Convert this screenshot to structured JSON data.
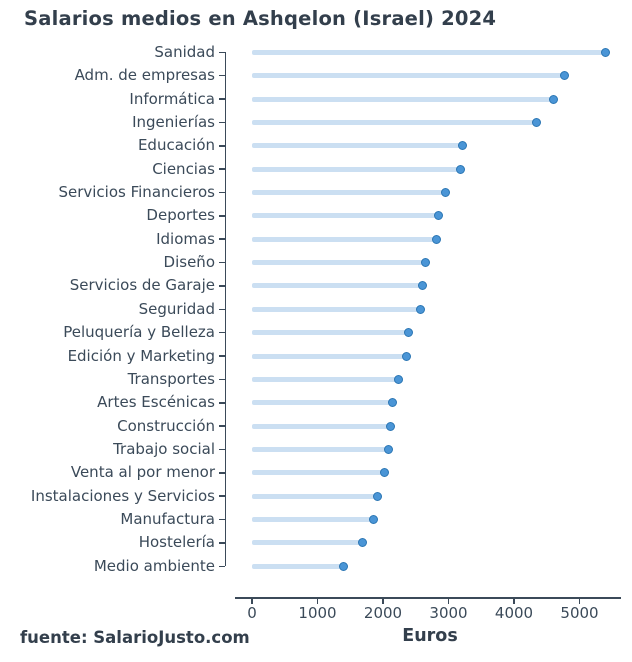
{
  "title": "Salarios medios en Ashqelon (Israel) 2024",
  "source": "fuente: SalarioJusto.com",
  "chart_data": {
    "type": "bar",
    "style": "horizontal-lollipop",
    "title": "Salarios medios en Ashqelon (Israel) 2024",
    "xlabel": "Euros",
    "ylabel": "",
    "xlim": [
      0,
      5630
    ],
    "x_ticks": [
      "0",
      "1000",
      "2000",
      "3000",
      "4000",
      "5000"
    ],
    "x_tick_values": [
      0,
      1000,
      2000,
      3000,
      4000,
      5000
    ],
    "grid": false,
    "legend": "none",
    "categories": [
      "Sanidad",
      "Adm. de empresas",
      "Informática",
      "Ingenierías",
      "Educación",
      "Ciencias",
      "Servicios Financieros",
      "Deportes",
      "Idiomas",
      "Diseño",
      "Servicios de Garaje",
      "Seguridad",
      "Peluquería y Belleza",
      "Edición y Marketing",
      "Transportes",
      "Artes Escénicas",
      "Construcción",
      "Trabajo social",
      "Venta al por menor",
      "Instalaciones y Servicios",
      "Manufactura",
      "Hostelería",
      "Medio ambiente"
    ],
    "values": [
      5390,
      4770,
      4600,
      4350,
      3220,
      3190,
      2960,
      2840,
      2820,
      2650,
      2610,
      2570,
      2390,
      2360,
      2240,
      2150,
      2120,
      2090,
      2020,
      1920,
      1850,
      1680,
      1390
    ],
    "colors": {
      "bar": "#cbdff2",
      "dot": "#4a95d6",
      "dot_border": "#2b76b4",
      "axis": "#3b4a59",
      "tick_text": "#3b4a59",
      "title_text": "#333f4c",
      "background": "#ffffff"
    }
  }
}
